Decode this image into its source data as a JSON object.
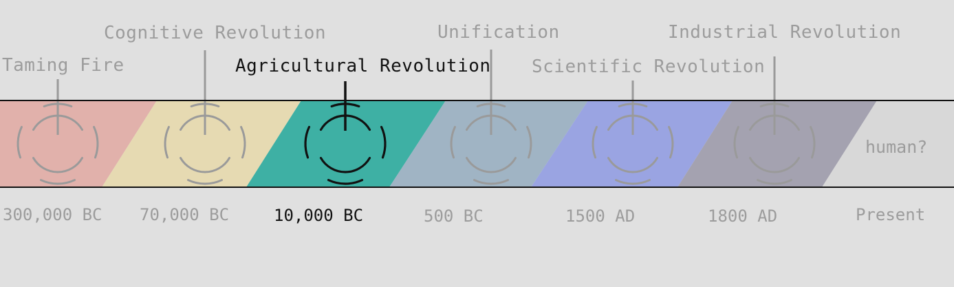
{
  "events": [
    {
      "label": "Taming Fire",
      "date": "300,000 BC",
      "color": "#e1b1ab",
      "active": false
    },
    {
      "label": "Cognitive Revolution",
      "date": "70,000 BC",
      "color": "#e6dab2",
      "active": false
    },
    {
      "label": "Agricultural Revolution",
      "date": "10,000 BC",
      "color": "#3eb0a4",
      "active": true
    },
    {
      "label": "Unification",
      "date": "500 BC",
      "color": "#a0b4c4",
      "active": false
    },
    {
      "label": "Scientific Revolution",
      "date": "1500 AD",
      "color": "#9aa4e2",
      "active": false
    },
    {
      "label": "Industrial Revolution",
      "date": "1800 AD",
      "color": "#a4a2b0",
      "active": false
    }
  ],
  "end": {
    "label": "human?",
    "date": "Present",
    "color": "#d8d8d8"
  },
  "colors": {
    "background": "#e0e0e0",
    "inactive_text": "#9c9c9c",
    "active_text": "#111111",
    "border": "#111111"
  }
}
